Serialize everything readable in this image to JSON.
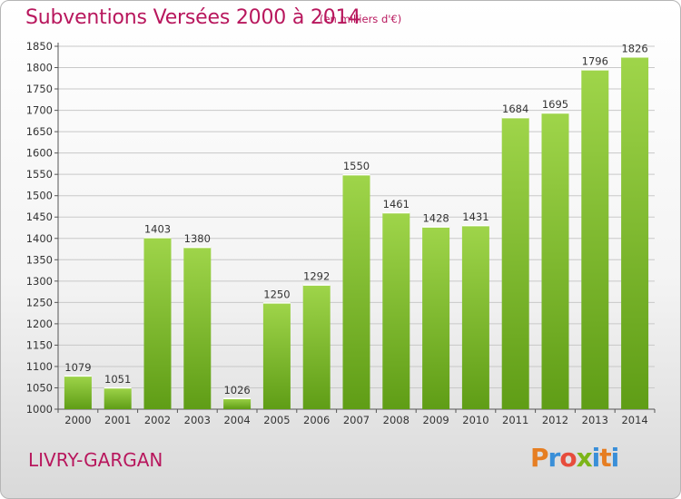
{
  "title": "Subventions Versées 2000 à 2014",
  "subtitle": "(en milliers d'€)",
  "place": "LIVRY-GARGAN",
  "logo": {
    "letters": [
      "P",
      "r",
      "o",
      "x",
      "i",
      "t",
      "i"
    ],
    "colors": [
      "#e67e22",
      "#3a8fd8",
      "#e74c3c",
      "#7cb518",
      "#3a8fd8",
      "#e67e22",
      "#3a8fd8"
    ]
  },
  "colors": {
    "title": "#b8175d",
    "bar_top": "#9fd54a",
    "bar_bottom": "#5f9d16",
    "grid": "#c8c8c8"
  },
  "chart_data": {
    "type": "bar",
    "categories": [
      "2000",
      "2001",
      "2002",
      "2003",
      "2004",
      "2005",
      "2006",
      "2007",
      "2008",
      "2009",
      "2010",
      "2011",
      "2012",
      "2013",
      "2014"
    ],
    "values": [
      1079,
      1051,
      1403,
      1380,
      1026,
      1250,
      1292,
      1550,
      1461,
      1428,
      1431,
      1684,
      1695,
      1796,
      1826
    ],
    "ylim": [
      1000,
      1850
    ],
    "ytick_step": 50,
    "yticks": [
      "1000",
      "1050",
      "1100",
      "1150",
      "1200",
      "1250",
      "1300",
      "1350",
      "1400",
      "1450",
      "1500",
      "1550",
      "1600",
      "1650",
      "1700",
      "1750",
      "1800",
      "1850"
    ],
    "grid": true,
    "data_labels": true
  }
}
